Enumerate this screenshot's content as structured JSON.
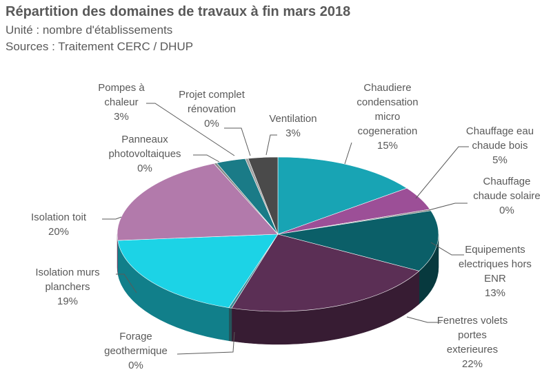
{
  "chart_data": {
    "type": "pie3d",
    "title": "Répartition des domaines de travaux à fin mars 2018",
    "subtitle": "Unité : nombre d'établissements",
    "source": "Sources : Traitement CERC / DHUP",
    "categories": [
      "Chaudiere condensation micro cogeneration",
      "Chauffage eau chaude bois",
      "Chauffage chaude solaire",
      "Equipements electriques hors ENR",
      "Fenetres volets portes exterieures",
      "Forage geothermique",
      "Isolation murs planchers",
      "Isolation toit",
      "Panneaux photovoltaiques",
      "Pompes à chaleur",
      "Projet complet rénovation",
      "Ventilation"
    ],
    "values": [
      15,
      5,
      0.3,
      13,
      22,
      0.3,
      19,
      20,
      0.3,
      3,
      0.3,
      3
    ],
    "value_labels": [
      "15%",
      "5%",
      "0%",
      "13%",
      "22%",
      "0%",
      "19%",
      "20%",
      "0%",
      "3%",
      "0%",
      "3%"
    ],
    "colors": [
      "#18a4b4",
      "#9c4f97",
      "#7f7f7f",
      "#0b5f68",
      "#5b2f55",
      "#3c8c96",
      "#1cd3e6",
      "#b27aab",
      "#8a8a8a",
      "#1a7b87",
      "#a0a0a0",
      "#4a4a4a"
    ]
  }
}
